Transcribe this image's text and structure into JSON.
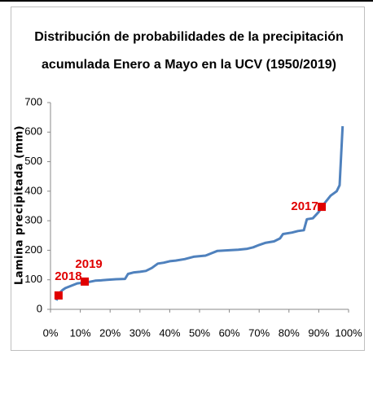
{
  "chart_data": {
    "type": "line",
    "title": [
      "Distribución de probabilidades de la precipitación",
      "acumulada Enero a Mayo en la UCV (1950/2019)"
    ],
    "y_label": "Lamina precipitada (mm)",
    "series": [
      {
        "color": "#4f81bd",
        "x": [
          2,
          3,
          4,
          5,
          7,
          9,
          11,
          13,
          15,
          17,
          19,
          22,
          25,
          26,
          28,
          30,
          32,
          34,
          36,
          38,
          40,
          42,
          45,
          48,
          52,
          54,
          56,
          60,
          63,
          66,
          68,
          70,
          72,
          75,
          77,
          78,
          81,
          83,
          85,
          86,
          88,
          90,
          92,
          94,
          96,
          97,
          98
        ],
        "values": [
          30,
          55,
          65,
          72,
          80,
          88,
          90,
          93,
          97,
          98,
          100,
          102,
          103,
          120,
          125,
          127,
          130,
          140,
          155,
          158,
          163,
          165,
          170,
          178,
          182,
          190,
          198,
          200,
          202,
          205,
          210,
          218,
          225,
          230,
          240,
          255,
          260,
          265,
          268,
          305,
          308,
          330,
          360,
          385,
          400,
          420,
          620
        ]
      }
    ],
    "highlights": [
      {
        "label": "2018",
        "x": 2.7,
        "y": 47,
        "color": "#e00000"
      },
      {
        "label": "2019",
        "x": 11.5,
        "y": 94,
        "color": "#e00000"
      },
      {
        "label": "2017",
        "x": 91,
        "y": 347,
        "color": "#e00000"
      }
    ],
    "xlim": [
      0,
      100
    ],
    "xticks": [
      {
        "value": 0,
        "label": "0%"
      },
      {
        "value": 10,
        "label": "10%"
      },
      {
        "value": 20,
        "label": "20%"
      },
      {
        "value": 30,
        "label": "30%"
      },
      {
        "value": 40,
        "label": "40%"
      },
      {
        "value": 50,
        "label": "50%"
      },
      {
        "value": 60,
        "label": "60%"
      },
      {
        "value": 70,
        "label": "70%"
      },
      {
        "value": 80,
        "label": "80%"
      },
      {
        "value": 90,
        "label": "90%"
      },
      {
        "value": 100,
        "label": "100%"
      }
    ],
    "ylim": [
      0,
      700
    ],
    "yticks": [
      0,
      100,
      200,
      300,
      400,
      500,
      600,
      700
    ],
    "grid": false
  }
}
